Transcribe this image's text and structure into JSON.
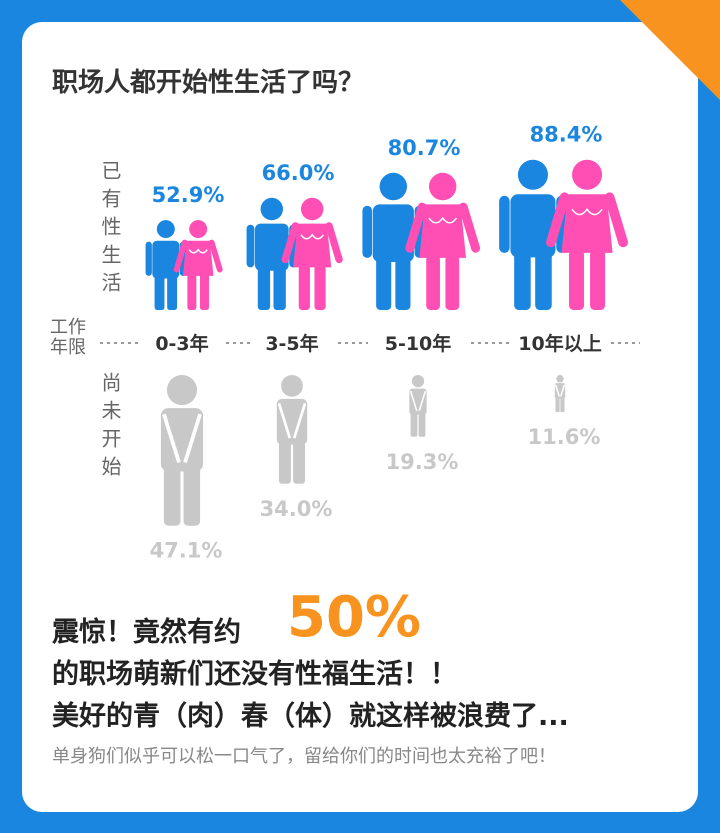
{
  "chart_data": {
    "type": "pictogram",
    "title": "职场人都开始性生活了吗？",
    "axis_label": "工作年限",
    "categories": [
      "0-3年",
      "3-5年",
      "5-10年",
      "10年以上"
    ],
    "series": [
      {
        "name": "已有性生活",
        "colors": [
          "#1a86e0",
          "#ff4fb4"
        ],
        "values": [
          52.9,
          66.0,
          80.7,
          88.4
        ],
        "value_labels": [
          "52.9%",
          "66.0%",
          "80.7%",
          "88.4%"
        ]
      },
      {
        "name": "尚未开始",
        "colors": [
          "#c8c8c8"
        ],
        "values": [
          47.1,
          34.0,
          19.3,
          11.6
        ],
        "value_labels": [
          "47.1%",
          "34.0%",
          "19.3%",
          "11.6%"
        ]
      }
    ]
  },
  "headline": {
    "line1": "震惊！竟然有约",
    "highlight": "50%",
    "line2": "的职场萌新们还没有性福生活！！",
    "line3": "美好的青（肉）春（体）就这样被浪费了...",
    "note": "单身狗们似乎可以松一口气了，留给你们的时间也太充裕了吧！"
  }
}
